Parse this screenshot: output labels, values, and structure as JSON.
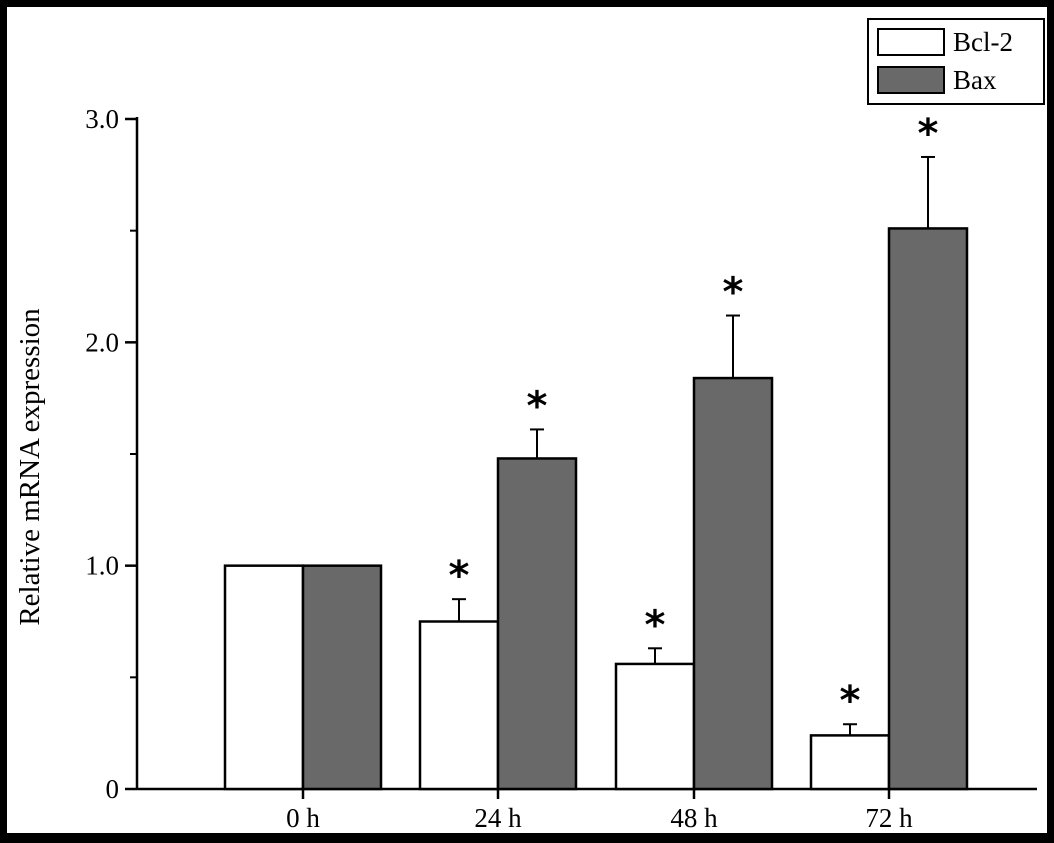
{
  "chart_data": {
    "type": "bar",
    "categories": [
      "0 h",
      "24 h",
      "48 h",
      "72 h"
    ],
    "series": [
      {
        "name": "Bcl-2",
        "color": "#ffffff",
        "values": [
          1.0,
          0.75,
          0.56,
          0.24
        ],
        "errors": [
          0.0,
          0.1,
          0.07,
          0.05
        ],
        "significant": [
          false,
          true,
          true,
          true
        ]
      },
      {
        "name": "Bax",
        "color": "#696969",
        "values": [
          1.0,
          1.48,
          1.84,
          2.51
        ],
        "errors": [
          0.0,
          0.13,
          0.28,
          0.32
        ],
        "significant": [
          false,
          true,
          true,
          true
        ]
      }
    ],
    "ylabel": "Relative mRNA expression",
    "xlabel": "",
    "ylim": [
      0,
      3.0
    ],
    "yticks": [
      {
        "value": 0,
        "label": "0"
      },
      {
        "value": 1,
        "label": "1.0"
      },
      {
        "value": 2,
        "label": "2.0"
      },
      {
        "value": 3,
        "label": "3.0"
      }
    ],
    "significance_marker": "*",
    "legend_position": "top-right",
    "grid": false
  }
}
